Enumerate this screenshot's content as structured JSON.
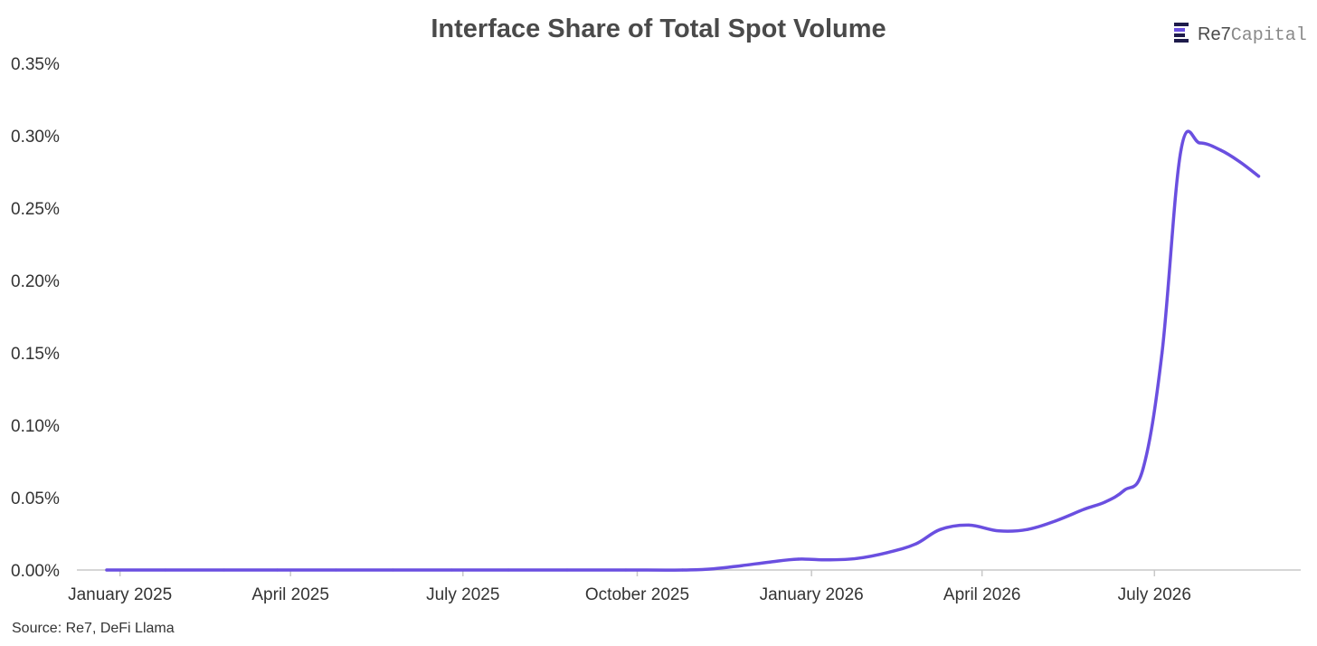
{
  "chart_data": {
    "type": "line",
    "title": "Interface Share of Total Spot Volume",
    "xlabel": "",
    "ylabel": "",
    "x_ticks": [
      "January 2025",
      "April 2025",
      "July 2025",
      "October 2025",
      "January 2026",
      "April 2026",
      "July 2026"
    ],
    "y_ticks": [
      "0.00%",
      "0.05%",
      "0.10%",
      "0.15%",
      "0.20%",
      "0.25%",
      "0.30%",
      "0.35%"
    ],
    "ylim": [
      0,
      0.35
    ],
    "y_unit": "%",
    "grid": false,
    "series": [
      {
        "color": "#6a4fe0",
        "x": [
          "2024-12-25",
          "2025-01-25",
          "2025-02-25",
          "2025-03-25",
          "2025-04-25",
          "2025-05-25",
          "2025-06-25",
          "2025-07-25",
          "2025-08-25",
          "2025-09-25",
          "2025-10-25",
          "2025-11-10",
          "2025-11-25",
          "2025-12-10",
          "2025-12-25",
          "2026-01-10",
          "2026-01-25",
          "2026-02-10",
          "2026-02-25",
          "2026-03-10",
          "2026-03-25",
          "2026-04-10",
          "2026-04-25",
          "2026-05-10",
          "2026-05-25",
          "2026-06-05",
          "2026-06-15",
          "2026-06-25",
          "2026-07-05",
          "2026-07-15",
          "2026-07-25",
          "2026-08-05",
          "2026-08-15",
          "2026-08-25"
        ],
        "values": [
          0.0,
          0.0,
          0.0,
          0.0,
          0.0,
          0.0,
          0.0,
          0.0,
          0.0,
          0.0,
          0.0,
          0.0008,
          0.003,
          0.0055,
          0.0075,
          0.007,
          0.008,
          0.012,
          0.018,
          0.028,
          0.031,
          0.027,
          0.028,
          0.034,
          0.042,
          0.047,
          0.055,
          0.07,
          0.15,
          0.29,
          0.295,
          0.29,
          0.282,
          0.272
        ]
      }
    ],
    "x_axis_start": "2024-12-25",
    "x_axis_end": "2026-09-10"
  },
  "source": "Source: Re7, DeFi Llama",
  "brand": {
    "icon": "re7-logo-icon",
    "name_part1": "Re7",
    "name_part2": "Capital",
    "accent_color": "#6a4fe0",
    "mark_color": "#1e1b4b"
  }
}
